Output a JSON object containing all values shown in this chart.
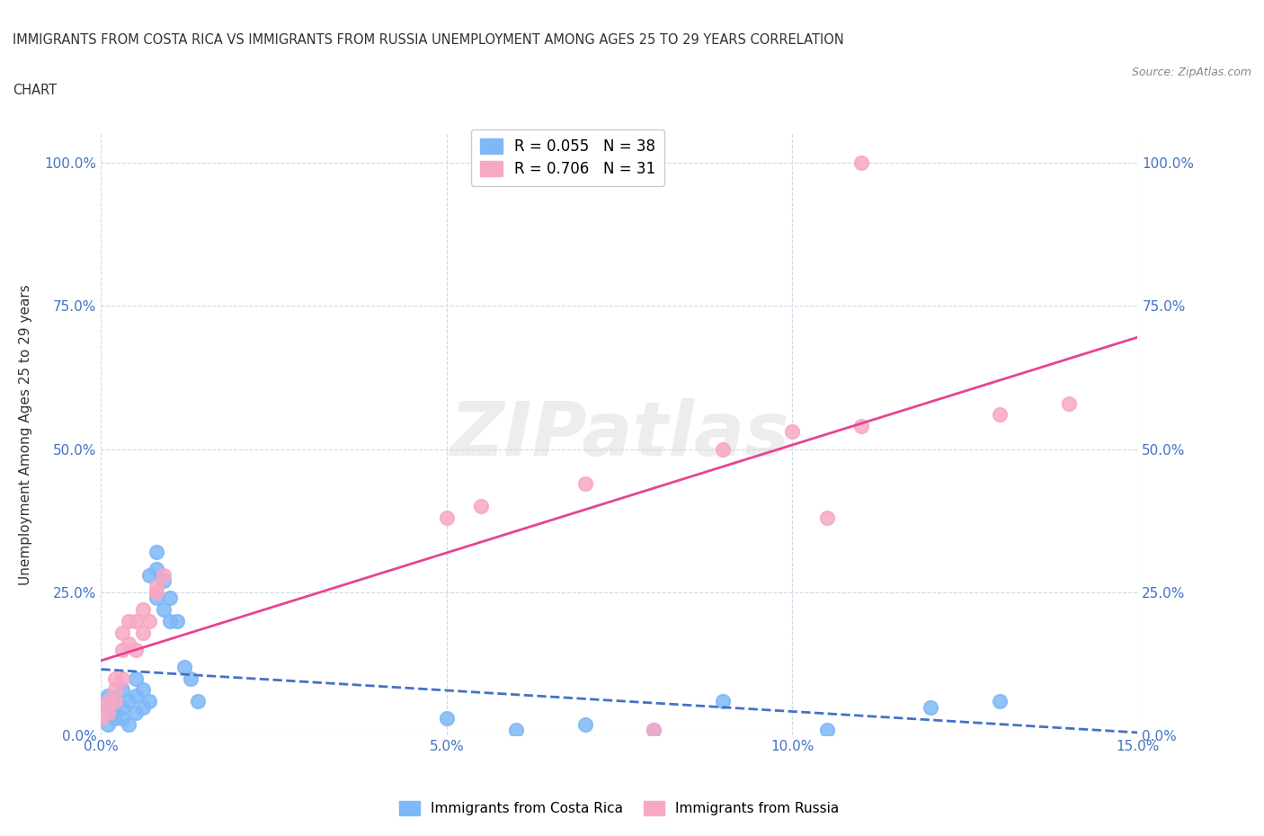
{
  "title_line1": "IMMIGRANTS FROM COSTA RICA VS IMMIGRANTS FROM RUSSIA UNEMPLOYMENT AMONG AGES 25 TO 29 YEARS CORRELATION",
  "title_line2": "CHART",
  "source": "Source: ZipAtlas.com",
  "xlabel": "",
  "ylabel": "Unemployment Among Ages 25 to 29 years",
  "xlim": [
    0.0,
    0.15
  ],
  "ylim": [
    0.0,
    1.05
  ],
  "xticks": [
    0.0,
    0.05,
    0.1,
    0.15
  ],
  "xticklabels": [
    "0.0%",
    "5.0%",
    "10.0%",
    "15.0%"
  ],
  "yticks": [
    0.0,
    0.25,
    0.5,
    0.75,
    1.0
  ],
  "yticklabels": [
    "0.0%",
    "25.0%",
    "50.0%",
    "75.0%",
    "100.0%"
  ],
  "watermark": "ZIPatlas",
  "legend_entries": [
    {
      "label": "R = 0.055   N = 38",
      "color": "#7eb8f7"
    },
    {
      "label": "R = 0.706   N = 31",
      "color": "#f7a8c4"
    }
  ],
  "costa_rica_color": "#7eb8f7",
  "russia_color": "#f7a8c4",
  "costa_rica_line_color": "#4472c4",
  "russia_line_color": "#e84393",
  "costa_rica_scatter": [
    [
      0.0,
      0.05
    ],
    [
      0.001,
      0.04
    ],
    [
      0.001,
      0.07
    ],
    [
      0.001,
      0.02
    ],
    [
      0.002,
      0.06
    ],
    [
      0.002,
      0.03
    ],
    [
      0.002,
      0.05
    ],
    [
      0.003,
      0.08
    ],
    [
      0.003,
      0.03
    ],
    [
      0.003,
      0.05
    ],
    [
      0.004,
      0.06
    ],
    [
      0.004,
      0.02
    ],
    [
      0.005,
      0.04
    ],
    [
      0.005,
      0.07
    ],
    [
      0.005,
      0.1
    ],
    [
      0.006,
      0.08
    ],
    [
      0.006,
      0.05
    ],
    [
      0.007,
      0.28
    ],
    [
      0.007,
      0.06
    ],
    [
      0.008,
      0.32
    ],
    [
      0.008,
      0.24
    ],
    [
      0.008,
      0.29
    ],
    [
      0.009,
      0.22
    ],
    [
      0.009,
      0.27
    ],
    [
      0.01,
      0.24
    ],
    [
      0.01,
      0.2
    ],
    [
      0.011,
      0.2
    ],
    [
      0.012,
      0.12
    ],
    [
      0.013,
      0.1
    ],
    [
      0.014,
      0.06
    ],
    [
      0.05,
      0.03
    ],
    [
      0.06,
      0.01
    ],
    [
      0.07,
      0.02
    ],
    [
      0.08,
      0.01
    ],
    [
      0.09,
      0.06
    ],
    [
      0.105,
      0.01
    ],
    [
      0.12,
      0.05
    ],
    [
      0.13,
      0.06
    ]
  ],
  "russia_scatter": [
    [
      0.0,
      0.03
    ],
    [
      0.0,
      0.05
    ],
    [
      0.001,
      0.04
    ],
    [
      0.001,
      0.06
    ],
    [
      0.002,
      0.06
    ],
    [
      0.002,
      0.08
    ],
    [
      0.002,
      0.1
    ],
    [
      0.003,
      0.1
    ],
    [
      0.003,
      0.15
    ],
    [
      0.003,
      0.18
    ],
    [
      0.004,
      0.16
    ],
    [
      0.004,
      0.2
    ],
    [
      0.005,
      0.15
    ],
    [
      0.005,
      0.2
    ],
    [
      0.006,
      0.22
    ],
    [
      0.006,
      0.18
    ],
    [
      0.007,
      0.2
    ],
    [
      0.008,
      0.25
    ],
    [
      0.008,
      0.26
    ],
    [
      0.009,
      0.28
    ],
    [
      0.05,
      0.38
    ],
    [
      0.055,
      0.4
    ],
    [
      0.07,
      0.44
    ],
    [
      0.08,
      0.01
    ],
    [
      0.09,
      0.5
    ],
    [
      0.1,
      0.53
    ],
    [
      0.105,
      0.38
    ],
    [
      0.11,
      0.54
    ],
    [
      0.11,
      1.0
    ],
    [
      0.13,
      0.56
    ],
    [
      0.14,
      0.58
    ]
  ],
  "costa_rica_R": 0.055,
  "russia_R": 0.706,
  "background_color": "#ffffff",
  "grid_color": "#d0d8e8",
  "tick_color": "#4472c4"
}
